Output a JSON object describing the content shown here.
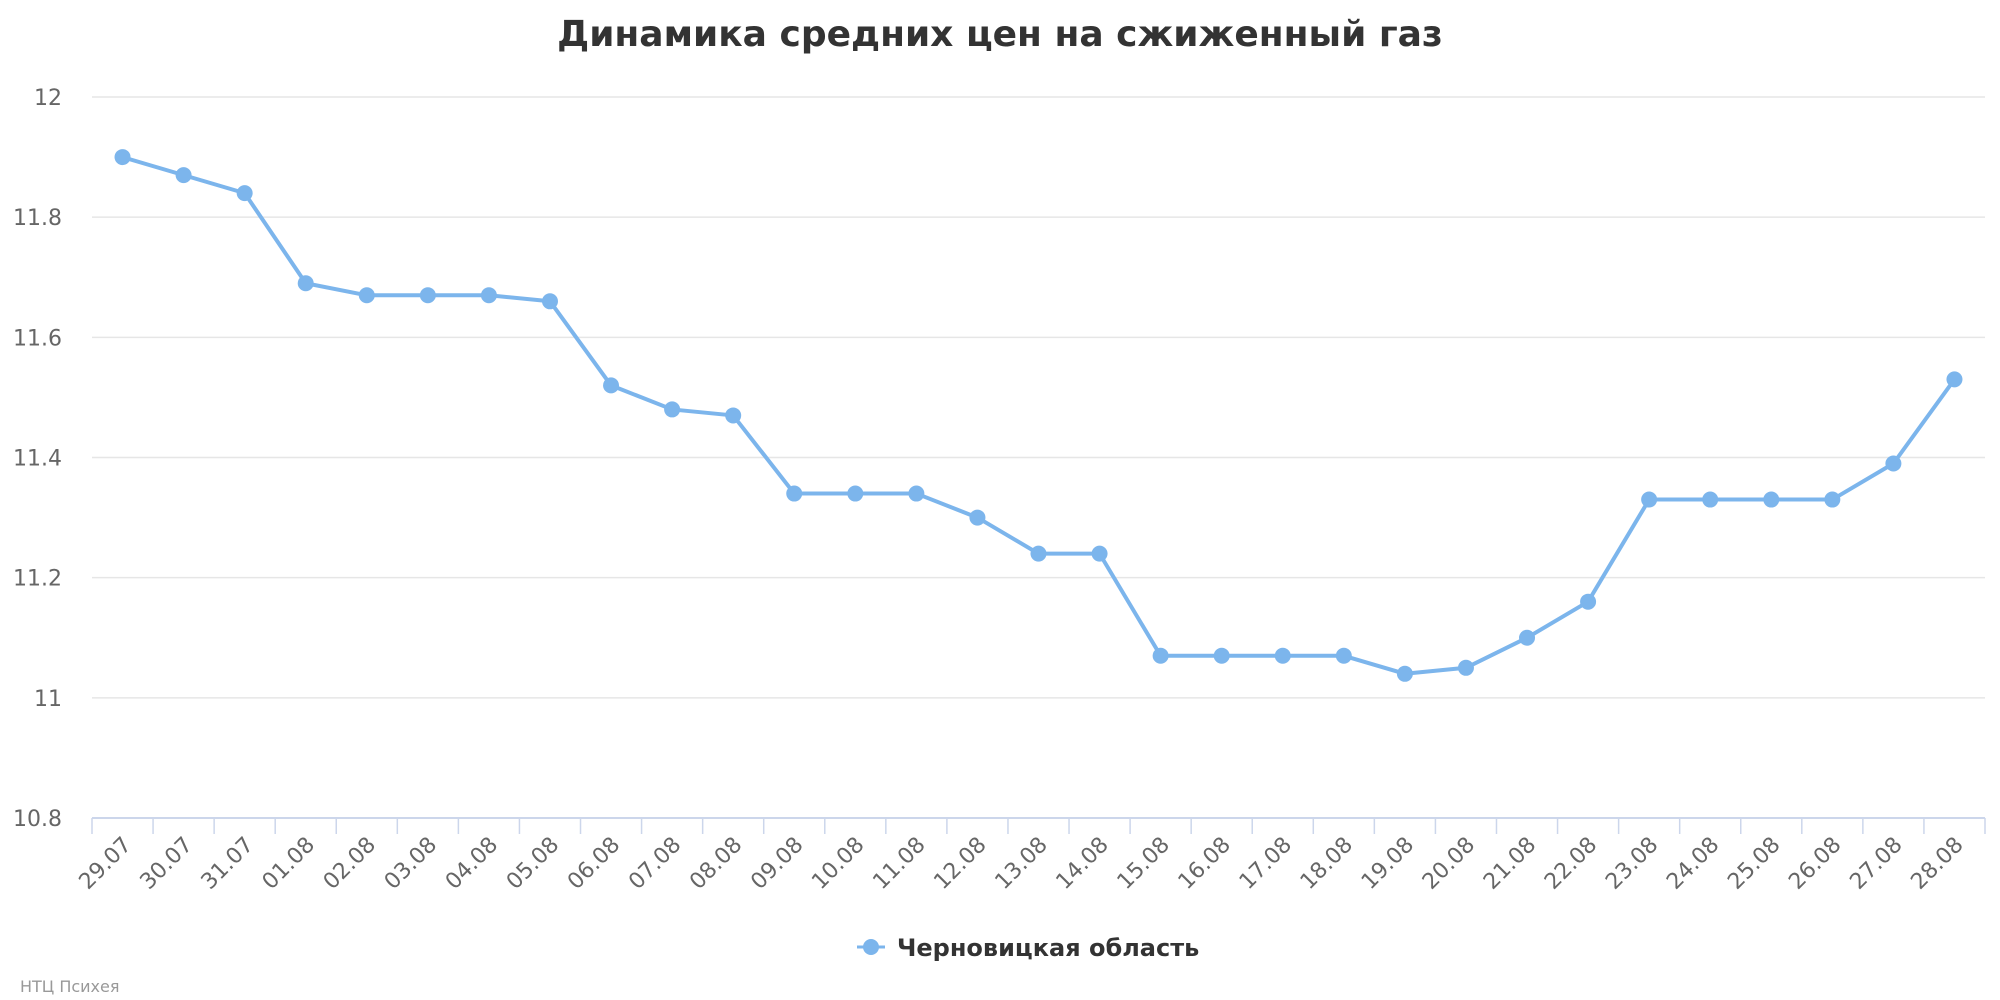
{
  "chart_data": {
    "type": "line",
    "title": "Динамика средних цен на сжиженный газ",
    "xlabel": "",
    "ylabel": "",
    "categories": [
      "29.07",
      "30.07",
      "31.07",
      "01.08",
      "02.08",
      "03.08",
      "04.08",
      "05.08",
      "06.08",
      "07.08",
      "08.08",
      "09.08",
      "10.08",
      "11.08",
      "12.08",
      "13.08",
      "14.08",
      "15.08",
      "16.08",
      "17.08",
      "18.08",
      "19.08",
      "20.08",
      "21.08",
      "22.08",
      "23.08",
      "24.08",
      "25.08",
      "26.08",
      "27.08",
      "28.08"
    ],
    "series": [
      {
        "name": "Черновицкая область",
        "color": "#7cb5ec",
        "values": [
          11.9,
          11.87,
          11.84,
          11.69,
          11.67,
          11.67,
          11.67,
          11.66,
          11.52,
          11.48,
          11.47,
          11.34,
          11.34,
          11.34,
          11.3,
          11.24,
          11.24,
          11.07,
          11.07,
          11.07,
          11.07,
          11.04,
          11.05,
          11.1,
          11.16,
          11.33,
          11.33,
          11.33,
          11.33,
          11.39,
          11.53
        ]
      }
    ],
    "yticks": [
      10.8,
      11,
      11.2,
      11.4,
      11.6,
      11.8,
      12
    ],
    "ytick_labels": [
      "10.8",
      "11",
      "11.2",
      "11.4",
      "11.6",
      "11.8",
      "12"
    ],
    "ylim": [
      10.8,
      12
    ],
    "grid": true,
    "legend_position": "bottom-center"
  },
  "credit": "НТЦ Психея"
}
